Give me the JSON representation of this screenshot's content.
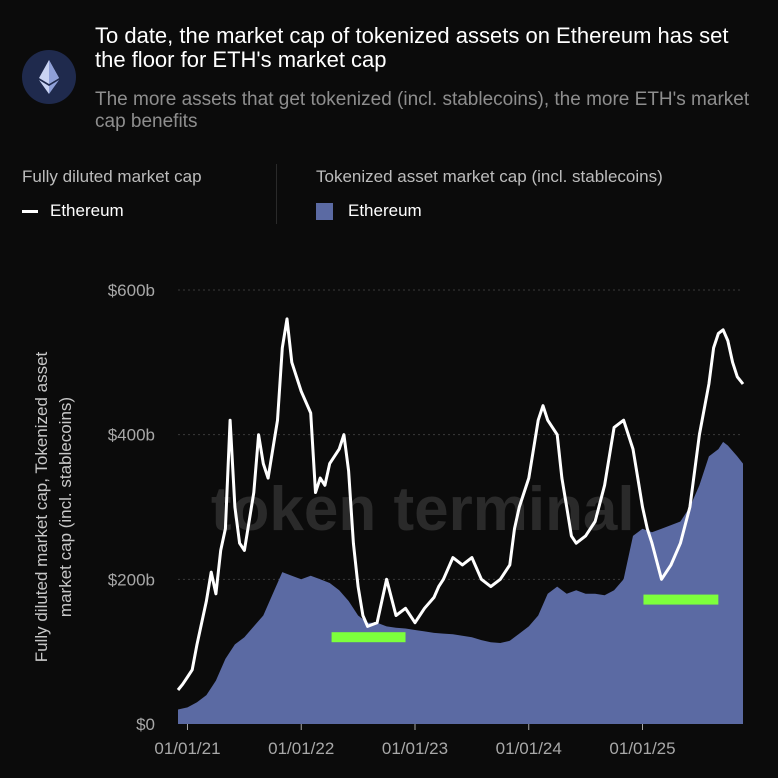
{
  "header": {
    "title": "To date, the market cap of tokenized assets on Ethereum has set the floor for ETH's market cap",
    "subtitle": "The more assets that get tokenized (incl. stablecoins), the more ETH's market cap benefits",
    "logo_icon": "ethereum-logo-icon"
  },
  "legend": {
    "group1_title": "Fully diluted market cap",
    "group1_item": "Ethereum",
    "group2_title": "Tokenized asset market cap (incl. stablecoins)",
    "group2_item": "Ethereum"
  },
  "watermark": "token terminal_",
  "colors": {
    "line": "#ffffff",
    "area": "#5b6aa3",
    "highlight": "#7dff3c",
    "background": "#0b0b0b"
  },
  "chart_data": {
    "type": "area",
    "title": "To date, the market cap of tokenized assets on Ethereum has set the floor for ETH's market cap",
    "ylabel": "Fully diluted market cap, Tokenized asset market cap (incl. stablecoins)",
    "xlabel": "",
    "x_ticks": [
      "01/01/21",
      "01/01/22",
      "01/01/23",
      "01/01/24",
      "01/01/25"
    ],
    "y_ticks": [
      "$0",
      "$200b",
      "$400b",
      "$600b"
    ],
    "ylim": [
      0,
      600
    ],
    "x_unit": "months since 2020-12-01",
    "xlim": [
      0,
      59.6
    ],
    "series": [
      {
        "name": "Ethereum (Fully diluted market cap)",
        "style": "line",
        "points": [
          [
            0,
            47
          ],
          [
            0.5,
            55
          ],
          [
            1,
            65
          ],
          [
            1.5,
            75
          ],
          [
            2,
            110
          ],
          [
            2.5,
            140
          ],
          [
            3,
            170
          ],
          [
            3.5,
            210
          ],
          [
            4,
            180
          ],
          [
            4.5,
            240
          ],
          [
            5,
            270
          ],
          [
            5.5,
            420
          ],
          [
            6,
            300
          ],
          [
            6.5,
            250
          ],
          [
            7,
            240
          ],
          [
            7.5,
            280
          ],
          [
            8,
            320
          ],
          [
            8.5,
            400
          ],
          [
            9,
            360
          ],
          [
            9.5,
            340
          ],
          [
            10,
            380
          ],
          [
            10.5,
            420
          ],
          [
            11,
            520
          ],
          [
            11.5,
            560
          ],
          [
            12,
            500
          ],
          [
            12.5,
            480
          ],
          [
            13,
            460
          ],
          [
            14,
            430
          ],
          [
            14.5,
            320
          ],
          [
            15,
            340
          ],
          [
            15.5,
            330
          ],
          [
            16,
            360
          ],
          [
            17,
            380
          ],
          [
            17.5,
            400
          ],
          [
            18,
            350
          ],
          [
            18.5,
            250
          ],
          [
            19,
            190
          ],
          [
            19.5,
            150
          ],
          [
            20,
            135
          ],
          [
            21,
            140
          ],
          [
            22,
            200
          ],
          [
            23,
            150
          ],
          [
            24,
            160
          ],
          [
            25,
            140
          ],
          [
            26,
            160
          ],
          [
            27,
            175
          ],
          [
            27.5,
            190
          ],
          [
            28,
            200
          ],
          [
            29,
            230
          ],
          [
            30,
            220
          ],
          [
            31,
            230
          ],
          [
            32,
            200
          ],
          [
            33,
            190
          ],
          [
            34,
            200
          ],
          [
            35,
            220
          ],
          [
            35.5,
            270
          ],
          [
            36,
            300
          ],
          [
            37,
            340
          ],
          [
            38,
            420
          ],
          [
            38.5,
            440
          ],
          [
            39,
            420
          ],
          [
            40,
            400
          ],
          [
            40.5,
            340
          ],
          [
            41,
            300
          ],
          [
            41.5,
            260
          ],
          [
            42,
            250
          ],
          [
            43,
            260
          ],
          [
            44,
            280
          ],
          [
            45,
            330
          ],
          [
            46,
            410
          ],
          [
            47,
            420
          ],
          [
            48,
            380
          ],
          [
            48.5,
            340
          ],
          [
            49,
            300
          ],
          [
            49.5,
            270
          ],
          [
            50,
            250
          ],
          [
            51,
            200
          ],
          [
            52,
            220
          ],
          [
            53,
            250
          ],
          [
            54,
            300
          ],
          [
            55,
            400
          ],
          [
            56,
            470
          ],
          [
            56.5,
            520
          ],
          [
            57,
            540
          ],
          [
            57.5,
            545
          ],
          [
            58,
            530
          ],
          [
            58.5,
            500
          ],
          [
            59,
            480
          ],
          [
            59.6,
            470
          ]
        ]
      },
      {
        "name": "Ethereum (Tokenized asset market cap incl. stablecoins)",
        "style": "area",
        "points": [
          [
            0,
            20
          ],
          [
            1,
            23
          ],
          [
            2,
            30
          ],
          [
            3,
            40
          ],
          [
            4,
            60
          ],
          [
            5,
            90
          ],
          [
            6,
            110
          ],
          [
            7,
            120
          ],
          [
            8,
            135
          ],
          [
            9,
            150
          ],
          [
            10,
            180
          ],
          [
            11,
            210
          ],
          [
            12,
            205
          ],
          [
            13,
            200
          ],
          [
            14,
            205
          ],
          [
            15,
            200
          ],
          [
            16,
            195
          ],
          [
            17,
            185
          ],
          [
            18,
            170
          ],
          [
            19,
            150
          ],
          [
            20,
            140
          ],
          [
            21,
            140
          ],
          [
            22,
            135
          ],
          [
            23,
            133
          ],
          [
            24,
            132
          ],
          [
            25,
            130
          ],
          [
            26,
            128
          ],
          [
            27,
            126
          ],
          [
            28,
            125
          ],
          [
            29,
            124
          ],
          [
            30,
            122
          ],
          [
            31,
            120
          ],
          [
            32,
            116
          ],
          [
            33,
            113
          ],
          [
            34,
            112
          ],
          [
            35,
            115
          ],
          [
            36,
            125
          ],
          [
            37,
            135
          ],
          [
            38,
            150
          ],
          [
            39,
            180
          ],
          [
            40,
            190
          ],
          [
            41,
            180
          ],
          [
            42,
            185
          ],
          [
            43,
            180
          ],
          [
            44,
            180
          ],
          [
            45,
            178
          ],
          [
            46,
            185
          ],
          [
            47,
            200
          ],
          [
            48,
            260
          ],
          [
            49,
            270
          ],
          [
            50,
            265
          ],
          [
            51,
            270
          ],
          [
            52,
            275
          ],
          [
            53,
            280
          ],
          [
            54,
            300
          ],
          [
            55,
            330
          ],
          [
            56,
            370
          ],
          [
            57,
            380
          ],
          [
            57.5,
            390
          ],
          [
            58,
            385
          ],
          [
            59,
            370
          ],
          [
            59.6,
            360
          ]
        ]
      }
    ],
    "highlights": [
      {
        "x_start": 16.2,
        "x_end": 24.0,
        "y": 120
      },
      {
        "x_start": 49.1,
        "x_end": 57.0,
        "y": 172
      }
    ]
  }
}
